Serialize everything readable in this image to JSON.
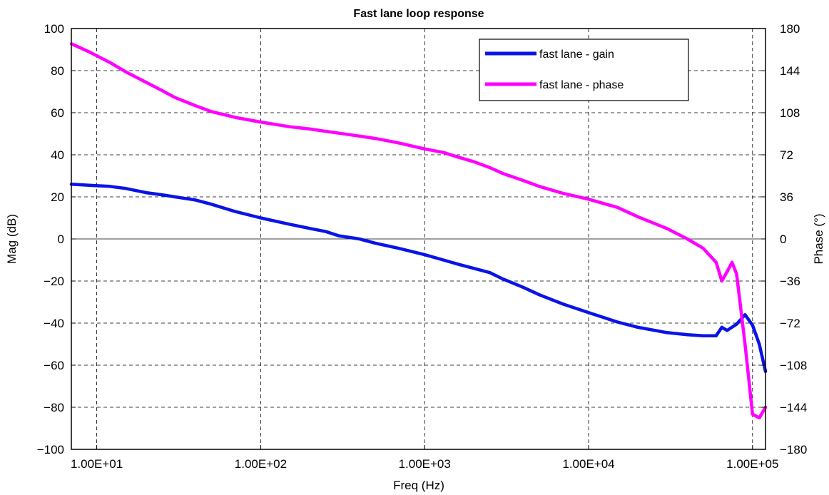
{
  "chart_data": {
    "type": "line",
    "title": "Fast lane loop response",
    "xlabel": "Freq (Hz)",
    "ylabel": "Mag (dB)",
    "y2label": "Phase (°)",
    "xscale": "log",
    "xlim": [
      7,
      120000
    ],
    "ylim": [
      -100,
      100
    ],
    "y2lim": [
      -180,
      180
    ],
    "grid": true,
    "legend_position": "top-right",
    "x_tick_values": [
      10,
      100,
      1000,
      10000,
      100000
    ],
    "x_tick_labels": [
      "1.00E+01",
      "1.00E+02",
      "1.00E+03",
      "1.00E+04",
      "1.00E+05"
    ],
    "y_ticks": [
      -100,
      -80,
      -60,
      -40,
      -20,
      0,
      20,
      40,
      60,
      80,
      100
    ],
    "y_tick_labels": [
      "−100",
      "−80",
      "−60",
      "−40",
      "−20",
      "0",
      "20",
      "40",
      "60",
      "80",
      "100"
    ],
    "y2_ticks": [
      -180,
      -144,
      -108,
      -72,
      -36,
      0,
      36,
      72,
      108,
      144,
      180
    ],
    "y2_tick_labels": [
      "−180",
      "−144",
      "−108",
      "−72",
      "−36",
      "0",
      "36",
      "72",
      "108",
      "144",
      "180"
    ],
    "series": [
      {
        "name": "fast lane - gain",
        "axis": "left",
        "color": "#0a14e6",
        "x": [
          7,
          9,
          12,
          15,
          20,
          25,
          30,
          40,
          50,
          70,
          100,
          150,
          200,
          250,
          300,
          400,
          500,
          700,
          1000,
          1300,
          1600,
          2000,
          2500,
          3000,
          4000,
          5000,
          7000,
          10000,
          15000,
          20000,
          30000,
          40000,
          50000,
          60000,
          65000,
          70000,
          80000,
          90000,
          100000,
          110000,
          120000
        ],
        "y": [
          26,
          25.5,
          25,
          24,
          22,
          21,
          20,
          18.5,
          16.5,
          13,
          10,
          7,
          5,
          3.5,
          1.5,
          0,
          -2,
          -4.5,
          -7.5,
          -10,
          -12,
          -14,
          -16,
          -19,
          -23,
          -26.5,
          -31,
          -35,
          -39.5,
          -42,
          -44.5,
          -45.5,
          -46,
          -46,
          -42,
          -43.5,
          -40.5,
          -36,
          -41,
          -50,
          -63
        ]
      },
      {
        "name": "fast lane - phase",
        "axis": "right",
        "color": "#ff00ff",
        "x": [
          7,
          9,
          12,
          15,
          20,
          25,
          30,
          40,
          50,
          70,
          100,
          150,
          200,
          250,
          300,
          400,
          500,
          700,
          1000,
          1300,
          1600,
          2000,
          2500,
          3000,
          4000,
          5000,
          7000,
          10000,
          15000,
          20000,
          30000,
          40000,
          50000,
          60000,
          65000,
          70000,
          75000,
          80000,
          90000,
          100000,
          110000,
          120000
        ],
        "y": [
          167,
          160,
          151,
          143,
          134,
          127,
          121,
          114,
          109,
          104,
          100,
          96,
          94,
          92,
          90.5,
          88,
          86,
          82,
          77,
          74,
          70,
          66,
          61,
          56,
          50,
          45,
          39,
          34,
          27,
          19,
          9,
          0,
          -8,
          -20,
          -36,
          -28,
          -20,
          -30,
          -90,
          -150,
          -153,
          -144
        ]
      }
    ]
  }
}
